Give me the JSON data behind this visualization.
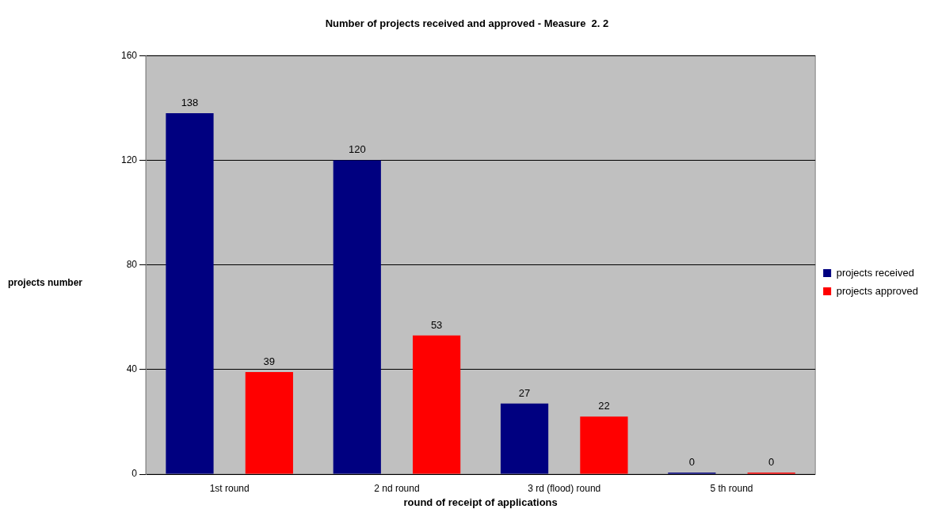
{
  "chart_data": {
    "type": "bar",
    "title": "Number of projects received and approved - Measure  2. 2",
    "xlabel": "round of receipt of applications",
    "ylabel": "projects number",
    "categories": [
      "1st round",
      "2 nd round",
      "3 rd (flood) round",
      "5 th round"
    ],
    "series": [
      {
        "name": "projects received",
        "color": "#000080",
        "values": [
          138,
          120,
          27,
          0
        ]
      },
      {
        "name": "projects approved",
        "color": "#ff0000",
        "values": [
          39,
          53,
          22,
          0
        ]
      }
    ],
    "ylim": [
      0,
      160
    ],
    "yticks": [
      0,
      40,
      80,
      120,
      160
    ],
    "grid": "y",
    "legend": "right",
    "data_labels": true
  }
}
